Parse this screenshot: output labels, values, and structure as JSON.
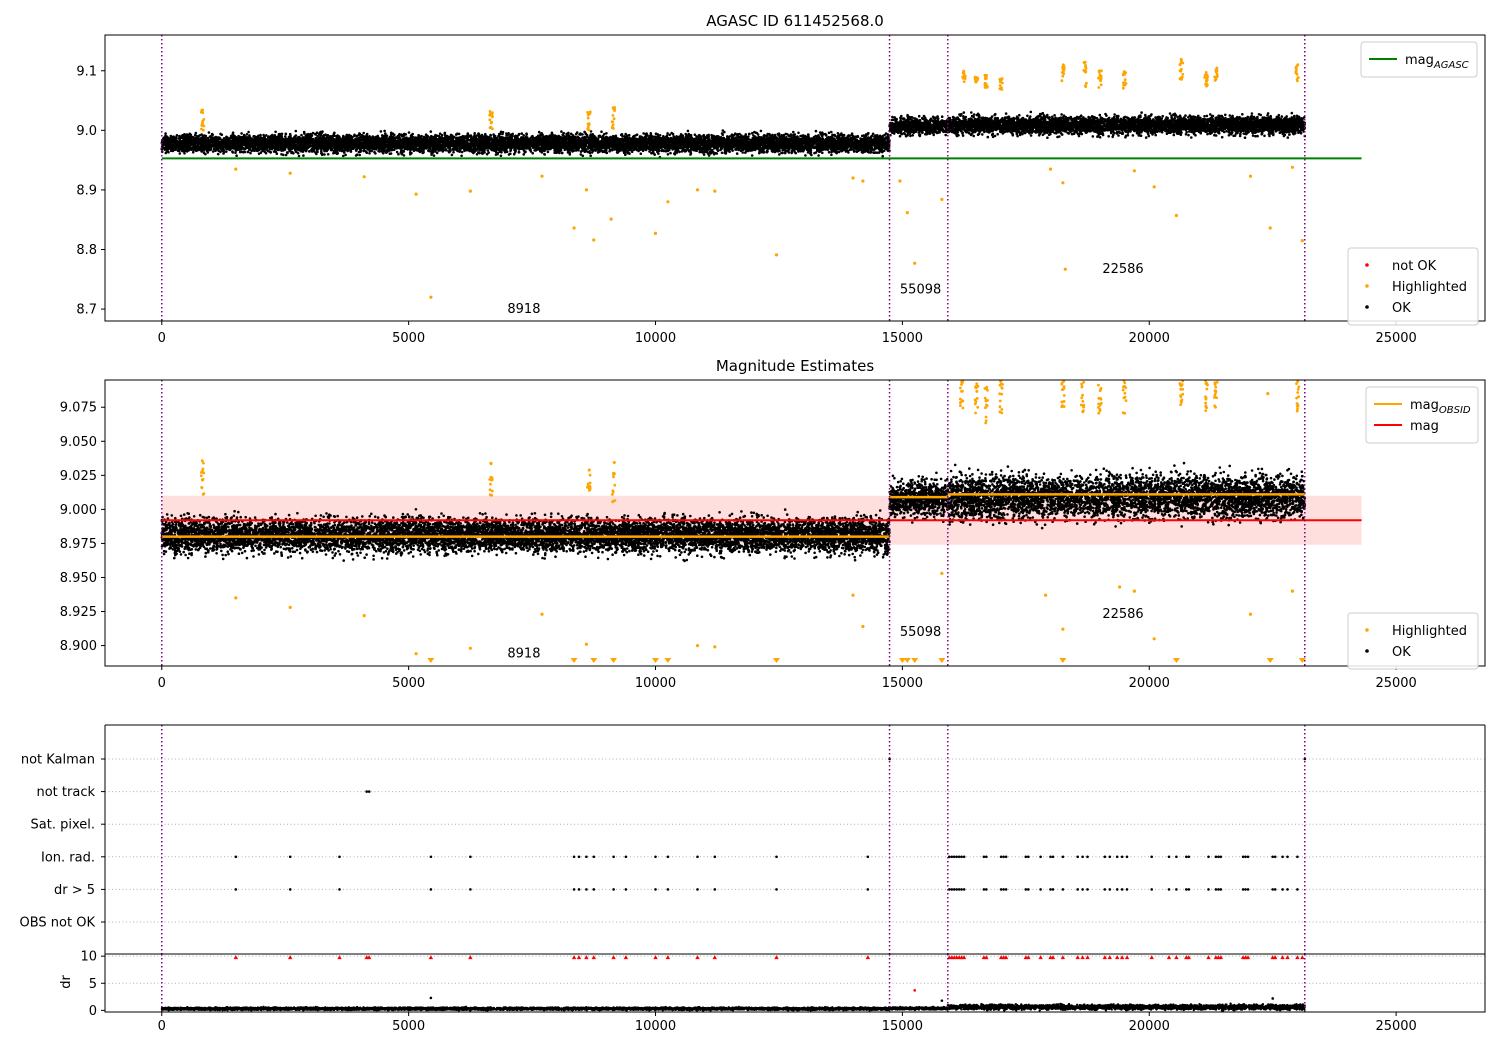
{
  "chart_data": [
    {
      "type": "scatter",
      "title": "AGASC ID 611452568.0",
      "xlim": [
        -1150,
        26800
      ],
      "ylim": [
        8.68,
        9.16
      ],
      "xticks": [
        0,
        5000,
        10000,
        15000,
        20000,
        25000
      ],
      "yticks": [
        8.7,
        8.8,
        8.9,
        9.0,
        9.1
      ],
      "ytick_labels": [
        "8.7",
        "8.8",
        "8.9",
        "9.0",
        "9.1"
      ],
      "vlines": [
        0,
        14740,
        15920,
        23150
      ],
      "hline": {
        "name": "mag_AGASC",
        "y": 8.953,
        "x0": 0,
        "x1": 24300,
        "color": "#008000"
      },
      "bands": [
        {
          "x0": 0,
          "x1": 14740,
          "center": 8.978,
          "spread": 0.013,
          "drift": 0.0
        },
        {
          "x0": 14740,
          "x1": 15920,
          "center": 9.007,
          "spread": 0.012,
          "drift": 0.0
        },
        {
          "x0": 15920,
          "x1": 23150,
          "center": 9.009,
          "spread": 0.013,
          "drift": 0.0
        }
      ],
      "highlight_clusters": [
        {
          "x": 830,
          "ylo": 9.0,
          "yhi": 9.035
        },
        {
          "x": 6670,
          "ylo": 9.0,
          "yhi": 9.033
        },
        {
          "x": 8650,
          "ylo": 9.0,
          "yhi": 9.032
        },
        {
          "x": 9150,
          "ylo": 9.0,
          "yhi": 9.04
        },
        {
          "x": 16250,
          "ylo": 9.08,
          "yhi": 9.1
        },
        {
          "x": 16500,
          "ylo": 9.08,
          "yhi": 9.09
        },
        {
          "x": 16700,
          "ylo": 9.07,
          "yhi": 9.095
        },
        {
          "x": 17000,
          "ylo": 9.065,
          "yhi": 9.09
        },
        {
          "x": 18250,
          "ylo": 9.08,
          "yhi": 9.11
        },
        {
          "x": 18700,
          "ylo": 9.07,
          "yhi": 9.115
        },
        {
          "x": 19000,
          "ylo": 9.07,
          "yhi": 9.1
        },
        {
          "x": 19500,
          "ylo": 9.07,
          "yhi": 9.1
        },
        {
          "x": 20650,
          "ylo": 9.08,
          "yhi": 9.12
        },
        {
          "x": 21150,
          "ylo": 9.07,
          "yhi": 9.1
        },
        {
          "x": 21350,
          "ylo": 9.08,
          "yhi": 9.105
        },
        {
          "x": 23000,
          "ylo": 9.08,
          "yhi": 9.115
        }
      ],
      "highlight_points": [
        [
          1500,
          8.935
        ],
        [
          2600,
          8.928
        ],
        [
          4100,
          8.922
        ],
        [
          5150,
          8.893
        ],
        [
          5450,
          8.72
        ],
        [
          6250,
          8.898
        ],
        [
          7700,
          8.923
        ],
        [
          8350,
          8.836
        ],
        [
          8600,
          8.9
        ],
        [
          8750,
          8.816
        ],
        [
          9100,
          8.851
        ],
        [
          10000,
          8.827
        ],
        [
          10250,
          8.88
        ],
        [
          10850,
          8.9
        ],
        [
          11200,
          8.898
        ],
        [
          12450,
          8.791
        ],
        [
          14000,
          8.92
        ],
        [
          14200,
          8.915
        ],
        [
          14950,
          8.915
        ],
        [
          15100,
          8.862
        ],
        [
          15250,
          8.777
        ],
        [
          15800,
          8.884
        ],
        [
          18000,
          8.935
        ],
        [
          18250,
          8.912
        ],
        [
          18300,
          8.767
        ],
        [
          19700,
          8.932
        ],
        [
          20100,
          8.905
        ],
        [
          20550,
          8.857
        ],
        [
          22050,
          8.923
        ],
        [
          22450,
          8.836
        ],
        [
          22900,
          8.938
        ],
        [
          23100,
          8.815
        ]
      ],
      "annotations": [
        {
          "x": 7000,
          "y": 8.7,
          "text": "8918"
        },
        {
          "x": 14950,
          "y": 8.733,
          "text": "55098"
        },
        {
          "x": 19050,
          "y": 8.767,
          "text": "22586"
        }
      ],
      "legend_top": {
        "position": "upper right",
        "entries": [
          {
            "label": "mag",
            "sub": "AGASC",
            "color": "#008000"
          }
        ]
      },
      "legend_bottom": {
        "position": "lower right",
        "entries": [
          {
            "label": "not OK",
            "color": "#ff0000"
          },
          {
            "label": "Highlighted",
            "color": "#ffa500"
          },
          {
            "label": "OK",
            "color": "#000000"
          }
        ]
      }
    },
    {
      "type": "scatter",
      "title": "Magnitude Estimates",
      "xlim": [
        -1150,
        26800
      ],
      "ylim": [
        8.885,
        9.095
      ],
      "xticks": [
        0,
        5000,
        10000,
        15000,
        20000,
        25000
      ],
      "yticks": [
        8.9,
        8.925,
        8.95,
        8.975,
        9.0,
        9.025,
        9.05,
        9.075
      ],
      "ytick_labels": [
        "8.900",
        "8.925",
        "8.950",
        "8.975",
        "9.000",
        "9.025",
        "9.050",
        "9.075"
      ],
      "vlines": [
        0,
        14740,
        15920,
        23150
      ],
      "mean": {
        "name": "mag",
        "y": 8.992,
        "lo": 8.974,
        "hi": 9.01,
        "x0": 0,
        "x1": 24300,
        "color": "#ff0000"
      },
      "obsid_segments": [
        {
          "x0": 0,
          "x1": 14740,
          "y": 8.98
        },
        {
          "x0": 14740,
          "x1": 15920,
          "y": 9.009
        },
        {
          "x0": 15920,
          "x1": 23150,
          "y": 9.011
        }
      ],
      "bands": [
        {
          "x0": 0,
          "x1": 14740,
          "center": 8.981,
          "spread": 0.011
        },
        {
          "x0": 14740,
          "x1": 15920,
          "center": 9.008,
          "spread": 0.011
        },
        {
          "x0": 15920,
          "x1": 23150,
          "center": 9.009,
          "spread": 0.014
        }
      ],
      "highlight_clusters": [
        {
          "x": 830,
          "ylo": 9.01,
          "yhi": 9.036
        },
        {
          "x": 6670,
          "ylo": 9.01,
          "yhi": 9.035
        },
        {
          "x": 8650,
          "ylo": 9.01,
          "yhi": 9.033
        },
        {
          "x": 9150,
          "ylo": 9.005,
          "yhi": 9.04
        },
        {
          "x": 16200,
          "ylo": 9.07,
          "yhi": 9.095
        },
        {
          "x": 16500,
          "ylo": 9.07,
          "yhi": 9.095
        },
        {
          "x": 16700,
          "ylo": 9.06,
          "yhi": 9.095
        },
        {
          "x": 17000,
          "ylo": 9.065,
          "yhi": 9.095
        },
        {
          "x": 18250,
          "ylo": 9.075,
          "yhi": 9.095
        },
        {
          "x": 18650,
          "ylo": 9.07,
          "yhi": 9.095
        },
        {
          "x": 19000,
          "ylo": 9.07,
          "yhi": 9.095
        },
        {
          "x": 19500,
          "ylo": 9.07,
          "yhi": 9.095
        },
        {
          "x": 20650,
          "ylo": 9.075,
          "yhi": 9.095
        },
        {
          "x": 21150,
          "ylo": 9.07,
          "yhi": 9.095
        },
        {
          "x": 21350,
          "ylo": 9.075,
          "yhi": 9.095
        },
        {
          "x": 23000,
          "ylo": 9.07,
          "yhi": 9.095
        }
      ],
      "highlight_points": [
        [
          1500,
          8.935
        ],
        [
          2600,
          8.928
        ],
        [
          4100,
          8.922
        ],
        [
          5150,
          8.894
        ],
        [
          6250,
          8.898
        ],
        [
          7700,
          8.923
        ],
        [
          8600,
          8.901
        ],
        [
          10850,
          8.9
        ],
        [
          11200,
          8.899
        ],
        [
          14000,
          8.937
        ],
        [
          14200,
          8.914
        ],
        [
          15800,
          8.953
        ],
        [
          17900,
          8.937
        ],
        [
          18250,
          8.912
        ],
        [
          19400,
          8.943
        ],
        [
          19700,
          8.94
        ],
        [
          20100,
          8.905
        ],
        [
          22050,
          8.923
        ],
        [
          22400,
          9.085
        ],
        [
          22900,
          8.94
        ]
      ],
      "below_markers": [
        5450,
        8350,
        8750,
        9150,
        10000,
        10250,
        12450,
        15000,
        15100,
        15250,
        15800,
        18250,
        20550,
        22450,
        23100
      ],
      "annotations": [
        {
          "x": 7000,
          "y": 8.894,
          "text": "8918"
        },
        {
          "x": 14950,
          "y": 8.91,
          "text": "55098"
        },
        {
          "x": 19050,
          "y": 8.923,
          "text": "22586"
        }
      ],
      "legend_top": {
        "position": "upper right",
        "entries": [
          {
            "label": "mag",
            "sub": "OBSID",
            "color": "#ffa500"
          },
          {
            "label": "mag",
            "sub": "",
            "color": "#ff0000"
          }
        ]
      },
      "legend_bottom": {
        "position": "lower right",
        "entries": [
          {
            "label": "Highlighted",
            "color": "#ffa500"
          },
          {
            "label": "OK",
            "color": "#000000"
          }
        ]
      }
    },
    {
      "type": "scatter",
      "title": "",
      "xlim": [
        -1150,
        26800
      ],
      "xticks": [],
      "flag_rows": [
        "not Kalman",
        "not track",
        "Sat. pixel.",
        "Ion. rad.",
        "dr > 5",
        "OBS not OK"
      ],
      "vlines": [
        0,
        14740,
        15920,
        23150
      ],
      "flag_points": {
        "not Kalman": [
          14740,
          23150
        ],
        "not track": [
          4150,
          4200
        ],
        "Sat. pixel.": [],
        "Ion. rad.": [
          1500,
          2600,
          3600,
          5450,
          6250,
          8350,
          8450,
          8600,
          8750,
          9150,
          9400,
          10000,
          10250,
          10850,
          11200,
          12450,
          14300,
          15950,
          16000,
          16050,
          16100,
          16150,
          16200,
          16250,
          16650,
          16700,
          17000,
          17050,
          17100,
          17500,
          17550,
          17800,
          18000,
          18050,
          18250,
          18550,
          18650,
          18750,
          19100,
          19200,
          19350,
          19450,
          19550,
          20050,
          20400,
          20550,
          20750,
          20800,
          21200,
          21350,
          21400,
          21450,
          21900,
          21950,
          22000,
          22500,
          22550,
          22700,
          22800,
          23000
        ],
        "dr > 5": [
          1500,
          2600,
          3600,
          5450,
          6250,
          8350,
          8450,
          8600,
          8750,
          9150,
          9400,
          10000,
          10250,
          10850,
          11200,
          12450,
          14300,
          15950,
          16000,
          16050,
          16100,
          16150,
          16200,
          16250,
          16650,
          16700,
          17000,
          17050,
          17100,
          17500,
          17550,
          17800,
          18000,
          18050,
          18250,
          18550,
          18650,
          18750,
          19100,
          19200,
          19350,
          19450,
          19550,
          20050,
          20400,
          20550,
          20750,
          20800,
          21200,
          21350,
          21400,
          21450,
          21900,
          21950,
          22000,
          22500,
          22550,
          22700,
          22800,
          23000
        ],
        "OBS not OK": []
      }
    },
    {
      "type": "scatter",
      "title": "",
      "ylabel": "dr",
      "xlim": [
        -1150,
        26800
      ],
      "ylim": [
        -0.3,
        10.4
      ],
      "yticks": [
        0,
        5,
        10
      ],
      "ytick_labels": [
        "0",
        "5",
        "10"
      ],
      "xticks": [
        0,
        5000,
        10000,
        15000,
        20000,
        25000
      ],
      "vlines": [
        0,
        14740,
        15920,
        23150
      ],
      "bands": [
        {
          "x0": 0,
          "x1": 14740,
          "center": 0.3,
          "spread": 0.2
        },
        {
          "x0": 14740,
          "x1": 15920,
          "center": 0.35,
          "spread": 0.2
        },
        {
          "x0": 15920,
          "x1": 23150,
          "center": 0.6,
          "spread": 0.4
        }
      ],
      "outliers": [
        [
          5450,
          2.3
        ],
        [
          15250,
          3.7
        ],
        [
          22500,
          2.2
        ],
        [
          15800,
          1.8
        ]
      ],
      "clipped_x": [
        1500,
        2600,
        3600,
        4150,
        4200,
        5450,
        6250,
        8350,
        8450,
        8600,
        8750,
        9150,
        9400,
        10000,
        10250,
        10850,
        11200,
        12450,
        14300,
        15950,
        16000,
        16050,
        16100,
        16150,
        16200,
        16250,
        16650,
        16700,
        17000,
        17050,
        17100,
        17500,
        17550,
        17800,
        18000,
        18050,
        18250,
        18550,
        18650,
        18750,
        19100,
        19200,
        19350,
        19450,
        19550,
        20050,
        20400,
        20550,
        20750,
        20800,
        21200,
        21350,
        21400,
        21450,
        21900,
        21950,
        22000,
        22500,
        22550,
        22700,
        22800,
        23000,
        23100
      ]
    }
  ],
  "colors": {
    "ok": "#000000",
    "highlighted": "#ffa500",
    "not_ok": "#ff0000",
    "agasc": "#008000",
    "obsid": "#ffa500",
    "mean": "#ff0000",
    "vline": "#800080"
  }
}
